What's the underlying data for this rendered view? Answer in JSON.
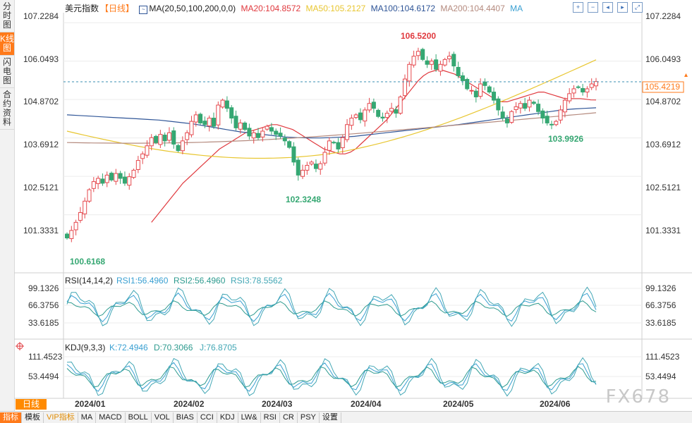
{
  "side_tabs": [
    "分时图",
    "K线图",
    "闪电图",
    "合约资料"
  ],
  "active_tab": 1,
  "legend": {
    "name": "美元指数",
    "period": "【日线】",
    "ma_params": "MA(20,50,100,200,0,0)",
    "ma20": "MA20:104.8572",
    "ma50": "MA50:105.2127",
    "ma100": "MA100:104.6172",
    "ma200": "MA200:104.4407",
    "ma_extra": "MA"
  },
  "toolbar_icons": [
    "plus-icon",
    "minus-icon",
    "left-icon",
    "right-icon",
    "expand-icon"
  ],
  "colors": {
    "up": "#e5484d",
    "down": "#35a772",
    "ma20": "#e0393e",
    "ma50": "#e8c630",
    "ma100": "#2f5597",
    "ma200": "#b58b7f",
    "rsi1": "#3aa0d2",
    "rsi2": "#2e9b8f",
    "rsi3": "#43a7b5",
    "k": "#3aa0d2",
    "d": "#2e9b8f",
    "j": "#43a7b5",
    "accent": "#ff7a1a"
  },
  "main_axis": [
    "107.2284",
    "106.0493",
    "104.8702",
    "103.6912",
    "102.5121",
    "101.3331"
  ],
  "current_price": "105.4219",
  "annotations": {
    "high": "106.5200",
    "low1": "100.6168",
    "low2": "102.3248",
    "low3": "103.9926"
  },
  "rsi": {
    "params": "RSI(14,14,2)",
    "rsi1": "RSI1:56.4960",
    "rsi2": "RSI2:56.4960",
    "rsi3": "RSI3:78.5562",
    "axis": [
      "99.1326",
      "66.3756",
      "33.6185"
    ]
  },
  "kdj": {
    "params": "KDJ(9,3,3)",
    "k": "K:72.4946",
    "d": "D:70.3066",
    "j": "J:76.8705",
    "axis": [
      "111.4523",
      "53.4494"
    ]
  },
  "dates": [
    "2024/01",
    "2024/02",
    "2024/03",
    "2024/04",
    "2024/05",
    "2024/06"
  ],
  "period_badge": "日线",
  "bottom_buttons": [
    "指标",
    "模板",
    "VIP指标",
    "MA",
    "MACD",
    "BOLL",
    "VOL",
    "BIAS",
    "CCI",
    "KDJ",
    "LW&",
    "RSI",
    "CR",
    "PSY",
    "设置"
  ],
  "watermark": "FX678",
  "chart_data": {
    "type": "candlestick",
    "title": "美元指数 【日线】",
    "ylim": [
      100.35,
      107.45
    ],
    "closes": [
      100.62,
      100.85,
      101.1,
      101.4,
      101.75,
      102.1,
      102.35,
      102.45,
      102.3,
      102.55,
      102.4,
      102.6,
      102.45,
      102.3,
      102.5,
      102.7,
      103.0,
      103.2,
      103.45,
      103.7,
      103.55,
      103.8,
      103.6,
      103.85,
      103.5,
      103.3,
      103.6,
      103.85,
      104.2,
      104.4,
      104.15,
      104.1,
      104.3,
      104.05,
      104.7,
      104.85,
      104.6,
      104.3,
      104.0,
      104.15,
      103.95,
      103.75,
      103.85,
      103.7,
      103.9,
      104.05,
      103.9,
      103.8,
      103.75,
      103.6,
      103.4,
      102.95,
      102.55,
      102.7,
      102.85,
      102.95,
      102.75,
      102.9,
      103.25,
      103.6,
      103.55,
      103.35,
      103.7,
      104.1,
      104.3,
      104.4,
      104.25,
      104.55,
      104.75,
      104.6,
      104.35,
      104.3,
      104.45,
      104.6,
      104.45,
      104.95,
      105.5,
      105.95,
      106.2,
      106.35,
      106.1,
      105.95,
      106.05,
      105.8,
      105.95,
      106.1,
      106.2,
      105.9,
      105.6,
      105.45,
      105.2,
      105.15,
      104.95,
      105.35,
      105.3,
      105.1,
      104.85,
      104.55,
      104.3,
      104.15,
      104.5,
      104.65,
      104.75,
      104.6,
      104.85,
      104.75,
      104.5,
      104.3,
      104.15,
      104.1,
      104.2,
      104.55,
      104.85,
      105.05,
      105.2,
      105.25,
      105.1,
      105.2,
      105.35,
      105.4219
    ],
    "ma20": [
      101.1,
      101.3,
      101.5,
      101.7,
      101.9,
      102.1,
      102.3,
      102.45,
      102.6,
      102.75,
      102.9,
      103.05,
      103.2,
      103.35,
      103.45,
      103.55,
      103.65,
      103.75,
      103.85,
      103.9,
      103.95,
      104.0,
      104.05,
      104.1,
      104.1,
      104.05,
      104.0,
      103.95,
      103.85,
      103.75,
      103.65,
      103.55,
      103.45,
      103.35,
      103.3,
      103.25,
      103.2,
      103.2,
      103.25,
      103.35,
      103.5,
      103.65,
      103.8,
      103.95,
      104.1,
      104.25,
      104.45,
      104.65,
      104.85,
      105.05,
      105.25,
      105.45,
      105.6,
      105.7,
      105.75,
      105.8,
      105.75,
      105.7,
      105.65,
      105.55,
      105.45,
      105.35,
      105.25,
      105.15,
      105.05,
      104.95,
      104.85,
      104.8,
      104.8,
      104.85,
      104.9,
      104.95,
      105.0,
      105.05,
      105.1,
      105.1,
      105.05,
      105.0,
      104.95,
      104.9,
      104.9,
      104.9,
      104.9,
      104.88,
      104.86,
      104.8572
    ],
    "ma100": [
      104.4,
      104.38,
      104.36,
      104.34,
      104.32,
      104.3,
      104.28,
      104.26,
      104.24,
      104.2,
      104.16,
      104.12,
      104.06,
      104.0,
      103.94,
      103.88,
      103.84,
      103.8,
      103.76,
      103.72,
      103.7,
      103.69,
      103.69,
      103.7,
      103.72,
      103.74,
      103.78,
      103.82,
      103.86,
      103.9,
      103.94,
      103.98,
      104.02,
      104.06,
      104.1,
      104.15,
      104.2,
      104.25,
      104.3,
      104.35,
      104.4,
      104.45,
      104.5,
      104.55,
      104.58,
      104.6,
      104.6172
    ]
  }
}
